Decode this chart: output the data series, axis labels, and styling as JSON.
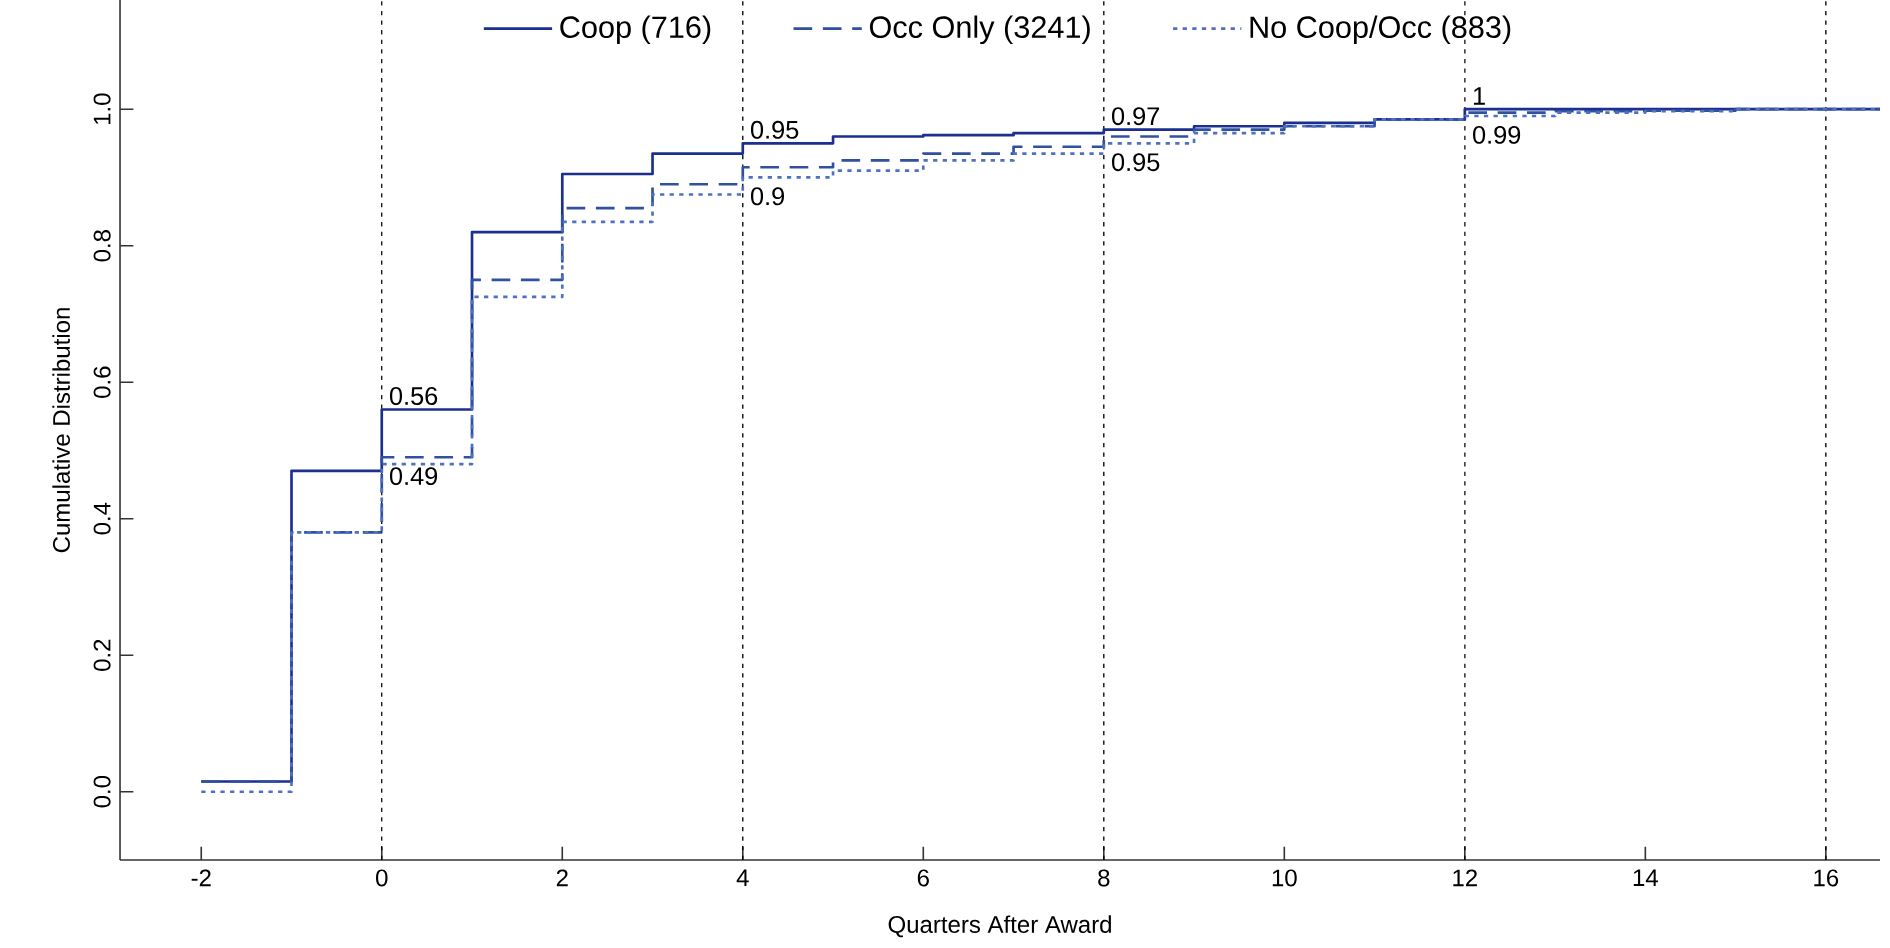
{
  "chart_data": {
    "type": "step",
    "xlabel": "Quarters After Award",
    "ylabel": "Cumulative Distribution",
    "x": [
      -2,
      -1,
      0,
      1,
      2,
      3,
      4,
      5,
      6,
      7,
      8,
      9,
      10,
      11,
      12,
      13,
      14,
      15,
      16,
      16.6
    ],
    "xlim": [
      -2.9,
      16.6
    ],
    "xticks": [
      -2,
      0,
      2,
      4,
      6,
      8,
      10,
      12,
      14,
      16
    ],
    "ylim": [
      -0.1,
      1.16
    ],
    "yticks": [
      {
        "value": 0,
        "label": "0.0"
      },
      0.2,
      0.4,
      0.6,
      0.8,
      {
        "value": 1,
        "label": "1.0"
      }
    ],
    "legend": "top",
    "grid": false,
    "series": [
      {
        "name": "Coop (716)",
        "color": "#1a2f8f",
        "line_style": "solid",
        "values": [
          0.015,
          0.47,
          0.56,
          0.82,
          0.905,
          0.935,
          0.95,
          0.96,
          0.962,
          0.965,
          0.97,
          0.975,
          0.98,
          0.985,
          1.0,
          1.0,
          1.0,
          1.0,
          1.0,
          1.0
        ]
      },
      {
        "name": "Occ Only (3241)",
        "color": "#3050a0",
        "line_style": "dashed",
        "values": [
          0.015,
          0.38,
          0.49,
          0.75,
          0.855,
          0.89,
          0.915,
          0.925,
          0.935,
          0.945,
          0.96,
          0.97,
          0.975,
          0.985,
          0.995,
          0.997,
          0.998,
          1.0,
          1.0,
          1.0
        ]
      },
      {
        "name": "No Coop/Occ (883)",
        "color": "#5070c0",
        "line_style": "dotted",
        "values": [
          0.0,
          0.38,
          0.48,
          0.725,
          0.835,
          0.875,
          0.9,
          0.91,
          0.925,
          0.935,
          0.95,
          0.965,
          0.975,
          0.985,
          0.99,
          0.995,
          0.997,
          1.0,
          1.0,
          1.0
        ]
      }
    ],
    "ref_lines": [
      {
        "axis": "x",
        "value": 0,
        "color": "#000000",
        "line_style": "dotted"
      },
      {
        "axis": "x",
        "value": 4,
        "color": "#000000",
        "line_style": "dotted"
      },
      {
        "axis": "x",
        "value": 8,
        "color": "#000000",
        "line_style": "dotted"
      },
      {
        "axis": "x",
        "value": 12,
        "color": "#000000",
        "line_style": "dotted"
      },
      {
        "axis": "x",
        "value": 16,
        "color": "#000000",
        "line_style": "dotted"
      }
    ],
    "annotations": [
      {
        "text": "0.56",
        "x": 0,
        "y": 0.56
      },
      {
        "text": "0.49",
        "x": 0,
        "y": 0.49
      },
      {
        "text": "0.95",
        "x": 4,
        "y": 0.95
      },
      {
        "text": "0.9",
        "x": 4,
        "y": 0.9
      },
      {
        "text": "0.97",
        "x": 8,
        "y": 0.97
      },
      {
        "text": "0.95",
        "x": 8,
        "y": 0.95
      },
      {
        "text": "1",
        "x": 12,
        "y": 1.0
      },
      {
        "text": "0.99",
        "x": 12,
        "y": 0.99
      }
    ]
  }
}
